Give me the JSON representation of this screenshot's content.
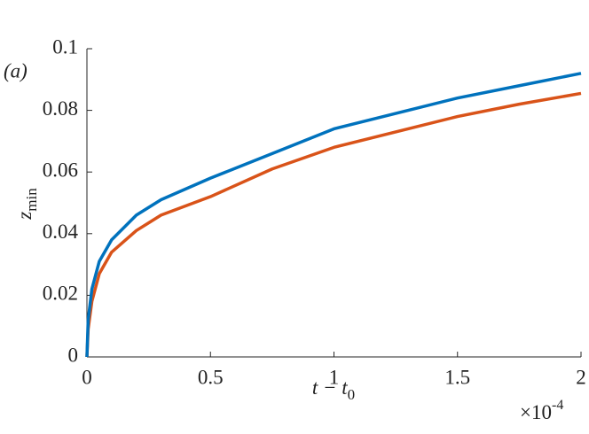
{
  "chart_data": {
    "type": "line",
    "annotation": "(a)",
    "x_label": {
      "base": "t − t",
      "sub": "0"
    },
    "y_label": {
      "base": "z",
      "sub": "min"
    },
    "x_multiplier": {
      "base": "×10",
      "exp": "-4"
    },
    "x": [
      0,
      0.005,
      0.02,
      0.05,
      0.1,
      0.2,
      0.3,
      0.5,
      0.75,
      1,
      1.25,
      1.5,
      1.75,
      2
    ],
    "series": [
      {
        "color": "#0072bd",
        "values": [
          0,
          0.012,
          0.022,
          0.031,
          0.038,
          0.046,
          0.051,
          0.058,
          0.066,
          0.074,
          0.079,
          0.084,
          0.088,
          0.092
        ]
      },
      {
        "color": "#d95319",
        "values": [
          0,
          0.009,
          0.018,
          0.027,
          0.034,
          0.041,
          0.046,
          0.052,
          0.061,
          0.068,
          0.073,
          0.078,
          0.082,
          0.0855
        ]
      }
    ],
    "xlim": [
      0,
      2
    ],
    "xticks": [
      0,
      0.5,
      1,
      1.5,
      2
    ],
    "ylim": [
      0,
      0.1
    ],
    "yticks": [
      0,
      0.02,
      0.04,
      0.06,
      0.08,
      0.1
    ],
    "grid": false
  }
}
